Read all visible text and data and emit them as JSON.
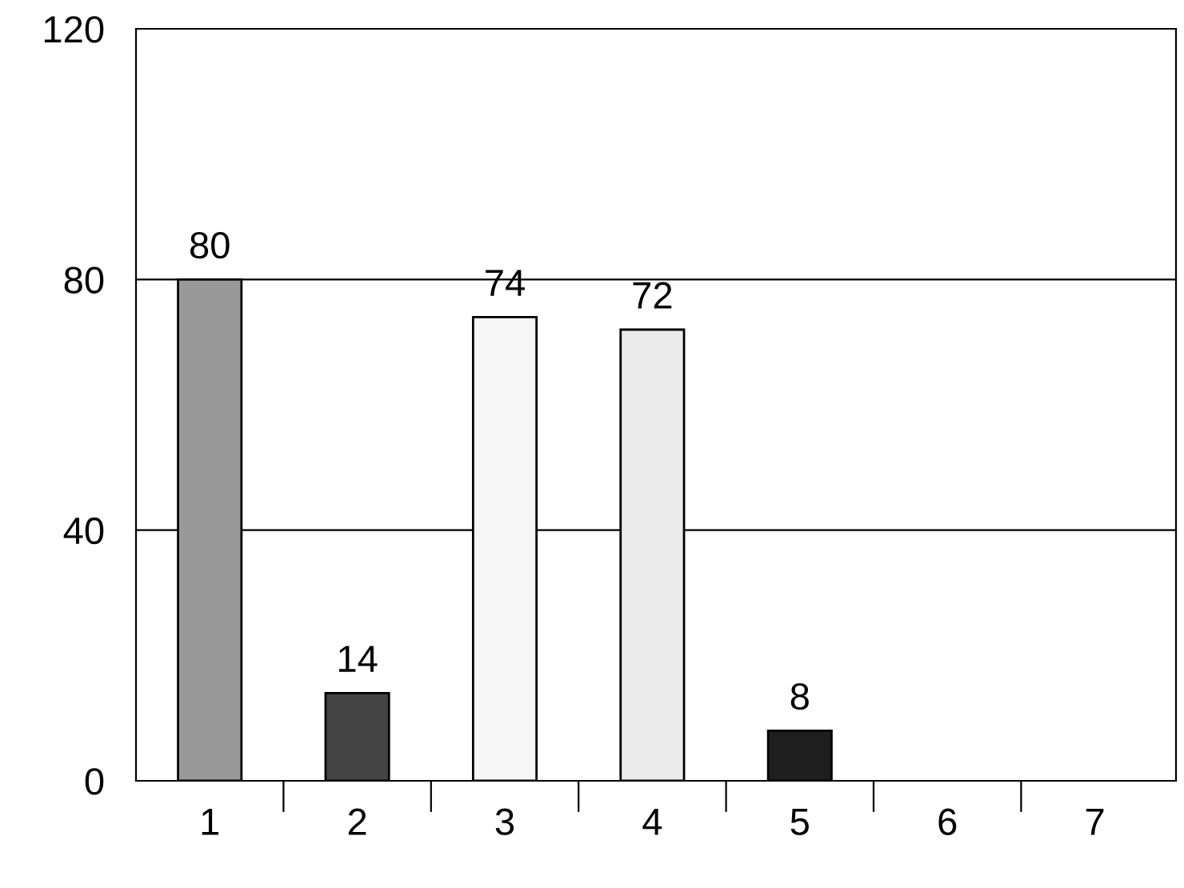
{
  "chart_data": {
    "type": "bar",
    "categories": [
      "1",
      "2",
      "3",
      "4",
      "5",
      "6",
      "7"
    ],
    "values": [
      80,
      14,
      74,
      72,
      8,
      null,
      null
    ],
    "colors": [
      "#999999",
      "#444444",
      "#f6f6f6",
      "#ebebeb",
      "#1e1e1e",
      "#ffffff",
      "#ffffff"
    ],
    "ylim": [
      0,
      120
    ],
    "yticks": [
      0,
      40,
      80,
      120
    ],
    "grid": "y",
    "data_labels": true
  }
}
